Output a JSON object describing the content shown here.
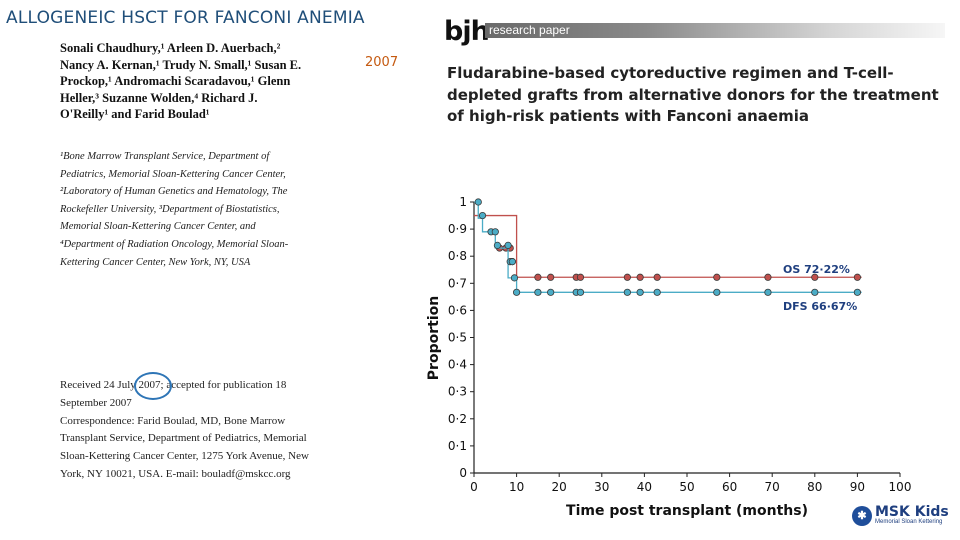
{
  "slide": {
    "title": "ALLOGENEIC HSCT FOR FANCONI ANEMIA",
    "year_note": "2007"
  },
  "paper": {
    "journal_logo": "bjh",
    "type_band": "research paper",
    "title": "Fludarabine-based cytoreductive regimen and T-cell-depleted grafts from alternative donors for the treatment of high-risk patients with Fanconi anaemia",
    "authors": "Sonali Chaudhury,¹ Arleen D. Auerbach,² Nancy A. Kernan,¹ Trudy N. Small,¹ Susan E. Prockop,¹ Andromachi Scaradavou,¹ Glenn Heller,³ Suzanne Wolden,⁴ Richard J. O'Reilly¹ and Farid Boulad¹",
    "affiliations": "¹Bone Marrow Transplant Service, Department of Pediatrics, Memorial Sloan-Kettering Cancer Center, ²Laboratory of Human Genetics and Hematology, The Rockefeller University, ³Department of Biostatistics, Memorial Sloan-Kettering Cancer Center, and ⁴Department of Radiation Oncology, Memorial Sloan-Kettering Cancer Center, New York, NY, USA",
    "received_prefix": "Received 24 July ",
    "received_year": "2007",
    "received_suffix": "; accepted for publication 18 September 2007",
    "correspondence": "Correspondence: Farid Boulad, MD, Bone Marrow Transplant Service, Department of Pediatrics, Memorial Sloan-Kettering Cancer Center, 1275 York Avenue, New York, NY 10021, USA. E-mail: bouladf@mskcc.org"
  },
  "chart_data": {
    "type": "line",
    "xlabel": "Time post transplant (months)",
    "ylabel": "Proportion",
    "xlim": [
      0,
      100
    ],
    "ylim": [
      0,
      1
    ],
    "xticks": [
      "0",
      "10",
      "20",
      "30",
      "40",
      "50",
      "60",
      "70",
      "80",
      "90",
      "100"
    ],
    "yticks": [
      "0",
      "0·1",
      "0·2",
      "0·3",
      "0·4",
      "0·5",
      "0·6",
      "0·7",
      "0·8",
      "0·9",
      "1"
    ],
    "series": [
      {
        "name": "OS 72·22%",
        "color": "#c0504d",
        "step_x": [
          0,
          10,
          91
        ],
        "step_y": [
          0.95,
          0.7222,
          0.7222
        ],
        "censor_x": [
          6,
          7.5,
          8.5,
          9,
          15,
          18,
          24,
          25,
          36,
          39,
          43,
          57,
          69,
          80,
          90
        ],
        "censor_y": [
          0.83,
          0.83,
          0.83,
          0.78,
          0.7222,
          0.7222,
          0.7222,
          0.7222,
          0.7222,
          0.7222,
          0.7222,
          0.7222,
          0.7222,
          0.7222,
          0.7222
        ]
      },
      {
        "name": "DFS 66·67%",
        "color": "#4bacc6",
        "step_x": [
          0,
          1,
          2,
          5,
          8,
          10,
          91
        ],
        "step_y": [
          1,
          0.94,
          0.89,
          0.83,
          0.72,
          0.6667,
          0.6667
        ],
        "censor_x": [
          1,
          2,
          4,
          5,
          5.5,
          8,
          8.5,
          9,
          9.5,
          10,
          15,
          18,
          24,
          25,
          36,
          39,
          43,
          57,
          69,
          80,
          90
        ],
        "censor_y": [
          1,
          0.95,
          0.89,
          0.89,
          0.84,
          0.84,
          0.78,
          0.78,
          0.72,
          0.6667,
          0.6667,
          0.6667,
          0.6667,
          0.6667,
          0.6667,
          0.6667,
          0.6667,
          0.6667,
          0.6667,
          0.6667,
          0.6667
        ]
      }
    ]
  },
  "logo": {
    "name": "MSK Kids",
    "sub": "Memorial Sloan Kettering"
  }
}
